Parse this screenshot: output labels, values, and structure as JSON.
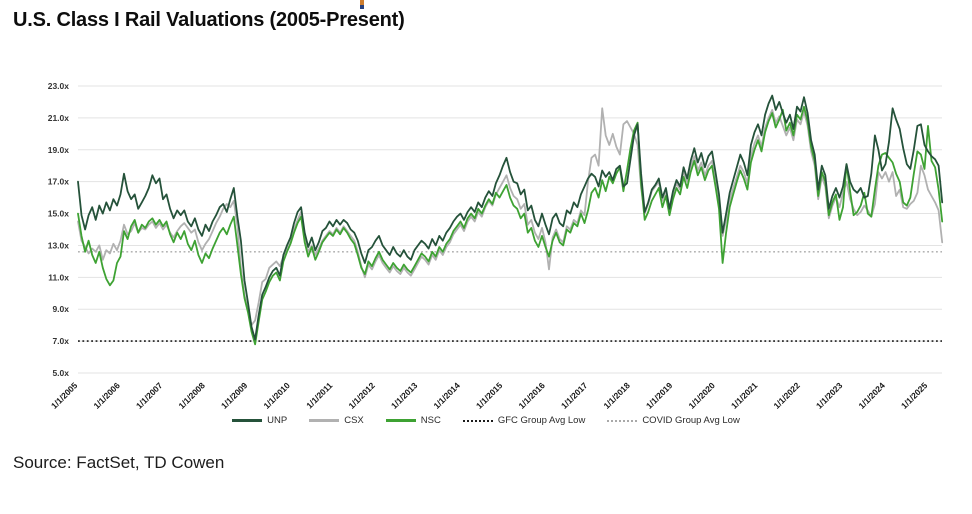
{
  "page": {
    "title": "U.S. Class I Rail Valuations (2005-Present)",
    "source_line": "Source: FactSet, TD Cowen"
  },
  "chart_data": {
    "type": "line",
    "title": "U.S. Class I Rail Valuations (2005-Present)",
    "x_start": "1/1/2005",
    "x_end": "5/1/2025",
    "x_frequency": "monthly",
    "x_tick_labels": [
      "1/1/2005",
      "1/1/2006",
      "1/1/2007",
      "1/1/2008",
      "1/1/2009",
      "1/1/2010",
      "1/1/2011",
      "1/1/2012",
      "1/1/2013",
      "1/1/2014",
      "1/1/2015",
      "1/1/2016",
      "1/1/2017",
      "1/1/2018",
      "1/1/2019",
      "1/1/2020",
      "1/1/2021",
      "1/1/2022",
      "1/1/2023",
      "1/1/2024",
      "1/1/2025"
    ],
    "y_tick_labels": [
      "5.0x",
      "7.0x",
      "9.0x",
      "11.0x",
      "13.0x",
      "15.0x",
      "17.0x",
      "19.0x",
      "21.0x",
      "23.0x"
    ],
    "ylim": [
      5,
      23
    ],
    "grid": true,
    "legend_position": "bottom",
    "series": [
      {
        "name": "CSX",
        "color": "#b1b1b1",
        "style": "solid",
        "values": [
          14.5,
          13.3,
          12.9,
          12.5,
          12.8,
          12.6,
          13.0,
          12.1,
          12.7,
          12.5,
          13.1,
          12.7,
          13.3,
          14.3,
          13.7,
          13.9,
          14.4,
          13.8,
          14.1,
          14.0,
          14.3,
          14.5,
          14.1,
          14.4,
          14.0,
          14.3,
          13.8,
          13.5,
          13.9,
          14.2,
          14.4,
          14.1,
          13.8,
          14.0,
          13.2,
          12.7,
          13.1,
          13.4,
          13.9,
          14.4,
          14.8,
          15.3,
          15.6,
          15.4,
          15.8,
          14.2,
          11.6,
          9.9,
          8.9,
          8.0,
          8.3,
          9.4,
          10.7,
          10.9,
          11.6,
          11.8,
          12.0,
          11.7,
          12.3,
          12.7,
          13.2,
          14.0,
          14.6,
          15.1,
          13.6,
          12.6,
          13.0,
          12.4,
          12.8,
          13.3,
          13.6,
          13.9,
          13.7,
          14.1,
          13.8,
          14.2,
          13.9,
          13.6,
          13.3,
          12.6,
          11.7,
          11.0,
          11.8,
          11.5,
          12.0,
          12.4,
          11.9,
          11.6,
          11.3,
          11.7,
          11.4,
          11.2,
          11.6,
          11.3,
          11.1,
          11.5,
          11.9,
          12.3,
          12.1,
          11.8,
          12.4,
          12.1,
          12.7,
          12.4,
          12.9,
          13.2,
          13.7,
          14.0,
          14.3,
          13.9,
          14.5,
          14.8,
          14.5,
          15.1,
          14.8,
          15.4,
          15.8,
          15.5,
          16.2,
          16.6,
          17.0,
          17.4,
          16.6,
          16.1,
          15.9,
          15.3,
          15.6,
          14.3,
          14.6,
          13.8,
          13.4,
          14.1,
          13.2,
          11.5,
          13.5,
          14.0,
          13.4,
          13.2,
          14.2,
          14.0,
          14.6,
          14.4,
          15.2,
          14.9,
          17.0,
          18.5,
          18.7,
          18.0,
          21.6,
          19.9,
          19.3,
          20.0,
          19.2,
          18.7,
          20.6,
          20.8,
          20.4,
          20.0,
          19.3,
          16.6,
          15.0,
          15.6,
          16.4,
          16.7,
          17.0,
          15.8,
          16.4,
          15.1,
          16.2,
          16.9,
          16.5,
          17.6,
          17.0,
          17.9,
          18.6,
          17.7,
          18.2,
          17.4,
          18.0,
          18.3,
          17.0,
          15.6,
          13.6,
          14.6,
          15.8,
          16.6,
          17.3,
          18.0,
          17.6,
          16.9,
          18.6,
          19.4,
          19.9,
          19.2,
          20.4,
          21.0,
          21.5,
          20.7,
          21.1,
          20.5,
          19.9,
          20.4,
          19.6,
          20.9,
          20.6,
          21.4,
          20.5,
          18.9,
          18.0,
          15.9,
          17.3,
          16.7,
          14.7,
          15.5,
          16.0,
          15.4,
          16.3,
          17.0,
          15.9,
          15.3,
          14.9,
          15.1,
          15.5,
          15.2,
          14.8,
          15.6,
          17.6,
          17.2,
          17.6,
          17.0,
          17.6,
          16.1,
          16.5,
          15.4,
          15.3,
          15.6,
          15.8,
          16.3,
          18.0,
          17.4,
          16.5,
          16.1,
          15.7,
          15.2,
          13.2
        ]
      },
      {
        "name": "NSC",
        "color": "#3ea233",
        "style": "solid",
        "values": [
          15.0,
          13.6,
          12.6,
          13.3,
          12.4,
          11.9,
          12.6,
          11.6,
          10.9,
          10.5,
          10.8,
          11.9,
          12.3,
          13.9,
          13.4,
          14.2,
          14.6,
          13.8,
          14.3,
          14.1,
          14.5,
          14.7,
          14.3,
          14.6,
          14.2,
          14.5,
          13.7,
          13.2,
          13.8,
          13.4,
          13.9,
          13.1,
          12.7,
          13.3,
          12.4,
          11.9,
          12.5,
          12.2,
          12.8,
          13.3,
          13.8,
          14.1,
          13.7,
          14.3,
          14.8,
          13.0,
          11.2,
          9.7,
          8.8,
          7.6,
          6.8,
          8.2,
          9.6,
          10.1,
          10.7,
          11.1,
          11.3,
          10.8,
          12.0,
          12.6,
          13.1,
          13.8,
          14.4,
          14.8,
          13.2,
          12.3,
          12.9,
          12.1,
          12.6,
          13.2,
          13.5,
          13.8,
          13.6,
          14.0,
          13.7,
          14.1,
          13.8,
          13.4,
          13.1,
          12.4,
          11.6,
          11.2,
          12.0,
          11.7,
          12.2,
          12.6,
          12.1,
          11.8,
          11.5,
          11.9,
          11.6,
          11.4,
          11.8,
          11.5,
          11.3,
          11.7,
          12.1,
          12.5,
          12.3,
          12.0,
          12.6,
          12.3,
          12.9,
          12.6,
          13.1,
          13.4,
          13.9,
          14.2,
          14.5,
          14.1,
          14.7,
          15.0,
          14.7,
          15.3,
          15.0,
          15.5,
          15.9,
          15.6,
          16.3,
          16.0,
          16.4,
          16.8,
          16.0,
          15.5,
          15.3,
          14.7,
          15.0,
          13.8,
          14.1,
          13.3,
          12.9,
          13.6,
          12.9,
          12.3,
          13.3,
          13.8,
          13.2,
          13.0,
          14.0,
          13.8,
          14.4,
          14.2,
          15.0,
          14.4,
          15.2,
          16.3,
          16.6,
          16.0,
          17.1,
          16.4,
          17.3,
          16.9,
          17.5,
          17.9,
          16.4,
          17.7,
          19.1,
          20.2,
          20.7,
          16.9,
          14.6,
          15.1,
          15.8,
          16.2,
          16.6,
          15.4,
          16.1,
          14.9,
          15.9,
          16.6,
          16.2,
          17.3,
          16.6,
          17.6,
          18.3,
          17.4,
          17.9,
          17.1,
          17.7,
          18.0,
          16.7,
          15.3,
          11.9,
          13.8,
          15.4,
          16.2,
          17.0,
          17.7,
          17.2,
          16.5,
          18.2,
          19.0,
          19.6,
          18.9,
          20.1,
          20.8,
          21.3,
          20.4,
          20.9,
          21.5,
          20.2,
          20.7,
          19.9,
          21.2,
          20.9,
          21.7,
          20.8,
          19.2,
          18.3,
          16.1,
          17.6,
          17.0,
          14.9,
          15.7,
          16.2,
          14.6,
          15.4,
          18.1,
          16.4,
          14.9,
          15.1,
          15.5,
          16.3,
          15.0,
          14.8,
          16.5,
          18.0,
          18.7,
          18.8,
          18.5,
          18.2,
          17.5,
          17.0,
          15.7,
          15.5,
          16.0,
          17.5,
          18.9,
          18.7,
          17.8,
          20.5,
          18.3,
          17.9,
          16.5,
          14.5
        ]
      },
      {
        "name": "UNP",
        "color": "#25523a",
        "style": "solid",
        "values": [
          17.0,
          14.9,
          14.0,
          14.9,
          15.4,
          14.6,
          15.5,
          15.0,
          15.7,
          15.2,
          15.9,
          15.5,
          16.2,
          17.5,
          16.4,
          15.9,
          16.2,
          15.3,
          15.7,
          16.1,
          16.6,
          17.4,
          16.9,
          17.2,
          15.9,
          16.2,
          15.3,
          14.7,
          15.2,
          14.9,
          15.2,
          14.5,
          14.2,
          14.7,
          14.0,
          13.6,
          14.3,
          13.9,
          14.5,
          14.9,
          15.4,
          15.6,
          15.1,
          15.9,
          16.6,
          14.8,
          13.3,
          10.8,
          9.4,
          7.9,
          7.1,
          8.6,
          9.9,
          10.4,
          11.0,
          11.4,
          11.6,
          11.1,
          12.4,
          13.0,
          13.5,
          14.4,
          15.1,
          15.4,
          13.8,
          12.9,
          13.5,
          12.7,
          13.2,
          13.9,
          14.1,
          14.5,
          14.2,
          14.6,
          14.3,
          14.6,
          14.4,
          14.0,
          13.8,
          13.3,
          12.5,
          11.9,
          12.7,
          12.9,
          13.3,
          13.6,
          13.0,
          12.7,
          12.4,
          12.9,
          12.5,
          12.3,
          12.7,
          12.3,
          12.1,
          12.7,
          13.0,
          13.3,
          13.1,
          12.8,
          13.4,
          13.0,
          13.6,
          13.3,
          13.8,
          14.1,
          14.5,
          14.8,
          15.0,
          14.6,
          15.1,
          15.4,
          15.1,
          15.7,
          15.4,
          16.0,
          16.4,
          16.1,
          16.9,
          17.4,
          18.0,
          18.5,
          17.6,
          17.0,
          16.9,
          16.2,
          16.5,
          15.2,
          15.5,
          14.6,
          14.2,
          15.0,
          14.3,
          13.7,
          14.7,
          15.0,
          14.4,
          14.2,
          15.2,
          15.0,
          15.7,
          15.4,
          16.2,
          16.7,
          17.2,
          17.5,
          17.3,
          16.7,
          17.7,
          17.3,
          17.6,
          17.1,
          17.8,
          18.0,
          16.7,
          16.9,
          18.4,
          19.9,
          20.6,
          17.5,
          15.1,
          15.7,
          16.5,
          16.8,
          17.2,
          16.0,
          16.6,
          15.3,
          16.4,
          17.1,
          16.7,
          17.9,
          17.2,
          18.3,
          19.1,
          18.2,
          18.8,
          17.9,
          18.6,
          18.9,
          17.6,
          16.2,
          13.8,
          15.0,
          16.3,
          17.1,
          17.9,
          18.7,
          18.2,
          17.4,
          19.3,
          20.1,
          20.6,
          19.9,
          21.2,
          21.9,
          22.4,
          21.5,
          22.0,
          21.3,
          20.7,
          21.2,
          20.3,
          21.7,
          21.4,
          22.3,
          21.3,
          19.6,
          18.7,
          16.5,
          18.0,
          17.4,
          15.3,
          16.1,
          16.6,
          16.0,
          16.7,
          18.1,
          17.0,
          16.5,
          16.3,
          16.6,
          16.0,
          16.1,
          17.5,
          19.9,
          19.0,
          17.7,
          18.1,
          19.5,
          21.6,
          20.9,
          20.3,
          19.1,
          18.1,
          17.8,
          19.0,
          20.5,
          20.6,
          19.3,
          18.9,
          18.6,
          18.4,
          18.0,
          15.7
        ]
      }
    ],
    "reference_lines": [
      {
        "label": "GFC Group Avg Low",
        "value": 7.0,
        "color": "#1c1c1c",
        "style": "dotted"
      },
      {
        "label": "COVID Group Avg Low",
        "value": 12.6,
        "color": "#a9a9a9",
        "style": "dotted"
      }
    ],
    "legend": [
      {
        "label": "UNP",
        "color": "#25523a",
        "style": "solid"
      },
      {
        "label": "CSX",
        "color": "#b1b1b1",
        "style": "solid"
      },
      {
        "label": "NSC",
        "color": "#3ea233",
        "style": "solid"
      },
      {
        "label": "GFC Group Avg Low",
        "color": "#1c1c1c",
        "style": "dotted"
      },
      {
        "label": "COVID Group Avg Low",
        "color": "#a9a9a9",
        "style": "dotted"
      }
    ],
    "colors": {
      "gridline": "#e3e3e3",
      "axis_label": "#333333",
      "title": "#0d0d0d"
    }
  }
}
